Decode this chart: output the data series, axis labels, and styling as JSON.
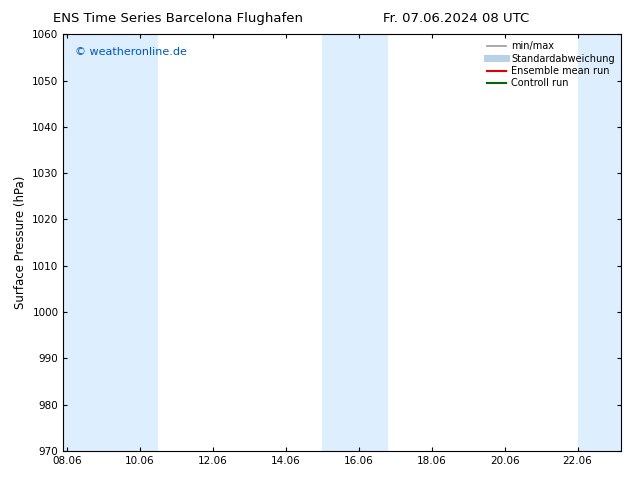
{
  "title_left": "ENS Time Series Barcelona Flughafen",
  "title_right": "Fr. 07.06.2024 08 UTC",
  "ylabel": "Surface Pressure (hPa)",
  "ylim": [
    970,
    1060
  ],
  "yticks": [
    970,
    980,
    990,
    1000,
    1010,
    1020,
    1030,
    1040,
    1050,
    1060
  ],
  "xtick_positions": [
    8,
    10,
    12,
    14,
    16,
    18,
    20,
    22
  ],
  "xtick_labels": [
    "08.06",
    "10.06",
    "12.06",
    "14.06",
    "16.06",
    "18.06",
    "20.06",
    "22.06"
  ],
  "xlim": [
    7.9,
    23.2
  ],
  "watermark": "© weatheronline.de",
  "watermark_color": "#0055cc",
  "bg_color": "#ffffff",
  "shaded_bands": [
    {
      "x_start": 7.9,
      "x_end": 9.5,
      "color": "#ddeeff"
    },
    {
      "x_start": 9.5,
      "x_end": 10.5,
      "color": "#ddeeff"
    },
    {
      "x_start": 15.0,
      "x_end": 16.8,
      "color": "#ddeeff"
    },
    {
      "x_start": 22.0,
      "x_end": 23.2,
      "color": "#ddeeff"
    }
  ],
  "legend_items": [
    {
      "label": "min/max",
      "color": "#999999",
      "lw": 1.2
    },
    {
      "label": "Standardabweichung",
      "color": "#b8d0e8",
      "lw": 5
    },
    {
      "label": "Ensemble mean run",
      "color": "#dd0000",
      "lw": 1.5
    },
    {
      "label": "Controll run",
      "color": "#006600",
      "lw": 1.5
    }
  ],
  "title_fontsize": 9.5,
  "tick_fontsize": 7.5,
  "label_fontsize": 8.5,
  "watermark_fontsize": 8
}
